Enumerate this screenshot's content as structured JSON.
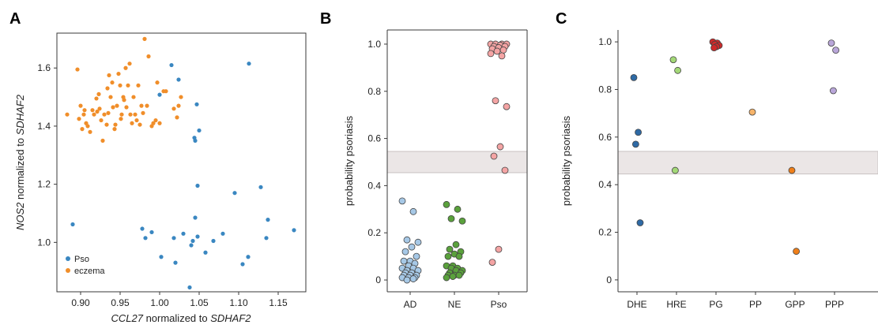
{
  "chart_data": [
    {
      "panel_label": "A",
      "type": "scatter",
      "xlabel": {
        "italic": "CCL27",
        "plain": " normalized to ",
        "italic2": "SDHAF2"
      },
      "ylabel": {
        "italic": "NOS2",
        "plain": " normalized to ",
        "italic2": "SDHAF2"
      },
      "xlim": [
        0.87,
        1.185
      ],
      "ylim": [
        0.83,
        1.72
      ],
      "xticks": [
        0.9,
        0.95,
        1.0,
        1.05,
        1.1,
        1.15
      ],
      "xtick_labels": [
        "0.90",
        "0.95",
        "1.00",
        "1.05",
        "1.10",
        "1.15"
      ],
      "yticks": [
        1.0,
        1.2,
        1.4,
        1.6
      ],
      "ytick_labels": [
        "1.0",
        "1.2",
        "1.4",
        "1.6"
      ],
      "legend_position": "bottom-left",
      "colors": {
        "Pso": "#3a87c1",
        "eczema": "#f08e2a"
      },
      "series": [
        {
          "name": "Pso",
          "points": [
            [
              0.89,
              1.062
            ],
            [
              0.978,
              1.047
            ],
            [
              0.982,
              1.015
            ],
            [
              0.99,
              1.035
            ],
            [
              1.0,
              1.508
            ],
            [
              1.002,
              0.95
            ],
            [
              1.015,
              1.61
            ],
            [
              1.018,
              1.015
            ],
            [
              1.02,
              0.93
            ],
            [
              1.024,
              1.56
            ],
            [
              1.03,
              1.03
            ],
            [
              1.038,
              0.845
            ],
            [
              1.04,
              0.99
            ],
            [
              1.042,
              1.005
            ],
            [
              1.044,
              1.36
            ],
            [
              1.045,
              1.085
            ],
            [
              1.045,
              1.35
            ],
            [
              1.047,
              1.475
            ],
            [
              1.048,
              1.195
            ],
            [
              1.048,
              1.02
            ],
            [
              1.05,
              1.385
            ],
            [
              1.058,
              0.965
            ],
            [
              1.068,
              1.005
            ],
            [
              1.08,
              1.03
            ],
            [
              1.095,
              1.17
            ],
            [
              1.105,
              0.925
            ],
            [
              1.112,
              0.95
            ],
            [
              1.113,
              1.615
            ],
            [
              1.128,
              1.19
            ],
            [
              1.135,
              1.015
            ],
            [
              1.137,
              1.078
            ],
            [
              1.17,
              1.042
            ]
          ]
        },
        {
          "name": "eczema",
          "points": [
            [
              0.883,
              1.44
            ],
            [
              0.896,
              1.595
            ],
            [
              0.898,
              1.425
            ],
            [
              0.9,
              1.47
            ],
            [
              0.902,
              1.39
            ],
            [
              0.904,
              1.44
            ],
            [
              0.905,
              1.455
            ],
            [
              0.907,
              1.41
            ],
            [
              0.909,
              1.4
            ],
            [
              0.912,
              1.38
            ],
            [
              0.915,
              1.455
            ],
            [
              0.917,
              1.44
            ],
            [
              0.92,
              1.495
            ],
            [
              0.921,
              1.45
            ],
            [
              0.923,
              1.51
            ],
            [
              0.924,
              1.46
            ],
            [
              0.926,
              1.42
            ],
            [
              0.928,
              1.35
            ],
            [
              0.93,
              1.44
            ],
            [
              0.933,
              1.405
            ],
            [
              0.934,
              1.53
            ],
            [
              0.935,
              1.445
            ],
            [
              0.936,
              1.575
            ],
            [
              0.938,
              1.5
            ],
            [
              0.94,
              1.55
            ],
            [
              0.941,
              1.465
            ],
            [
              0.943,
              1.39
            ],
            [
              0.944,
              1.405
            ],
            [
              0.946,
              1.47
            ],
            [
              0.948,
              1.58
            ],
            [
              0.95,
              1.54
            ],
            [
              0.951,
              1.425
            ],
            [
              0.952,
              1.44
            ],
            [
              0.954,
              1.5
            ],
            [
              0.955,
              1.49
            ],
            [
              0.957,
              1.6
            ],
            [
              0.958,
              1.465
            ],
            [
              0.96,
              1.54
            ],
            [
              0.962,
              1.615
            ],
            [
              0.963,
              1.44
            ],
            [
              0.965,
              1.41
            ],
            [
              0.967,
              1.5
            ],
            [
              0.969,
              1.44
            ],
            [
              0.971,
              1.42
            ],
            [
              0.973,
              1.54
            ],
            [
              0.975,
              1.405
            ],
            [
              0.977,
              1.47
            ],
            [
              0.979,
              1.445
            ],
            [
              0.981,
              1.7
            ],
            [
              0.984,
              1.47
            ],
            [
              0.986,
              1.64
            ],
            [
              0.99,
              1.4
            ],
            [
              0.992,
              1.41
            ],
            [
              0.995,
              1.42
            ],
            [
              0.997,
              1.55
            ],
            [
              1.0,
              1.41
            ],
            [
              1.005,
              1.52
            ],
            [
              1.008,
              1.52
            ],
            [
              1.018,
              1.46
            ],
            [
              1.022,
              1.43
            ],
            [
              1.024,
              1.47
            ],
            [
              1.027,
              1.5
            ]
          ]
        }
      ]
    },
    {
      "panel_label": "B",
      "type": "scatter",
      "ylabel": "probability psoriasis",
      "categories": [
        "AD",
        "NE",
        "Pso"
      ],
      "ylim": [
        -0.05,
        1.06
      ],
      "yticks": [
        0,
        0.2,
        0.4,
        0.6,
        0.8,
        1.0
      ],
      "ytick_labels": [
        "0",
        "0.2",
        "0.4",
        "0.6",
        "0.8",
        "1.0"
      ],
      "band": [
        0.455,
        0.545
      ],
      "colors": {
        "AD": "#a6c8e6",
        "NE": "#5aa13c",
        "Pso": "#f4a4a4"
      },
      "series": [
        {
          "name": "AD",
          "values": [
            0.335,
            0.29,
            0.17,
            0.16,
            0.14,
            0.12,
            0.1,
            0.08,
            0.08,
            0.07,
            0.06,
            0.05,
            0.05,
            0.04,
            0.04,
            0.03,
            0.03,
            0.02,
            0.02,
            0.02,
            0.01,
            0.01,
            0.01,
            0.005,
            0.0
          ]
        },
        {
          "name": "NE",
          "values": [
            0.32,
            0.3,
            0.26,
            0.25,
            0.15,
            0.13,
            0.12,
            0.11,
            0.1,
            0.1,
            0.06,
            0.06,
            0.05,
            0.05,
            0.04,
            0.04,
            0.03,
            0.03,
            0.02,
            0.02,
            0.02,
            0.015,
            0.01
          ]
        },
        {
          "name": "Pso",
          "values": [
            1.0,
            1.0,
            1.0,
            1.0,
            0.995,
            0.99,
            0.99,
            0.985,
            0.98,
            0.975,
            0.97,
            0.96,
            0.95,
            0.76,
            0.735,
            0.565,
            0.525,
            0.465,
            0.13,
            0.075
          ]
        }
      ]
    },
    {
      "panel_label": "C",
      "type": "scatter",
      "ylabel": "probability psoriasis",
      "categories": [
        "DHE",
        "HRE",
        "PG",
        "PP",
        "GPP",
        "PPP"
      ],
      "ylim": [
        -0.05,
        1.05
      ],
      "yticks": [
        0,
        0.2,
        0.4,
        0.6,
        0.8,
        1.0
      ],
      "ytick_labels": [
        "0",
        "0.2",
        "0.4",
        "0.6",
        "0.8",
        "1.0"
      ],
      "band": [
        0.445,
        0.54
      ],
      "colors": {
        "DHE": "#2e6aa5",
        "HRE": "#a3d877",
        "PG": "#cf2a2a",
        "PP": "#f7b46a",
        "GPP": "#ef7f1a",
        "PPP": "#b9a6d9"
      },
      "series": [
        {
          "name": "DHE",
          "values": [
            0.85,
            0.62,
            0.57,
            0.24
          ]
        },
        {
          "name": "HRE",
          "values": [
            0.925,
            0.88,
            0.46
          ]
        },
        {
          "name": "PG",
          "values": [
            1.0,
            0.995,
            0.99,
            0.985,
            0.98,
            0.975
          ]
        },
        {
          "name": "PP",
          "values": [
            0.705
          ]
        },
        {
          "name": "GPP",
          "values": [
            0.46,
            0.12
          ]
        },
        {
          "name": "PPP",
          "values": [
            0.995,
            0.965,
            0.795
          ]
        }
      ]
    }
  ]
}
